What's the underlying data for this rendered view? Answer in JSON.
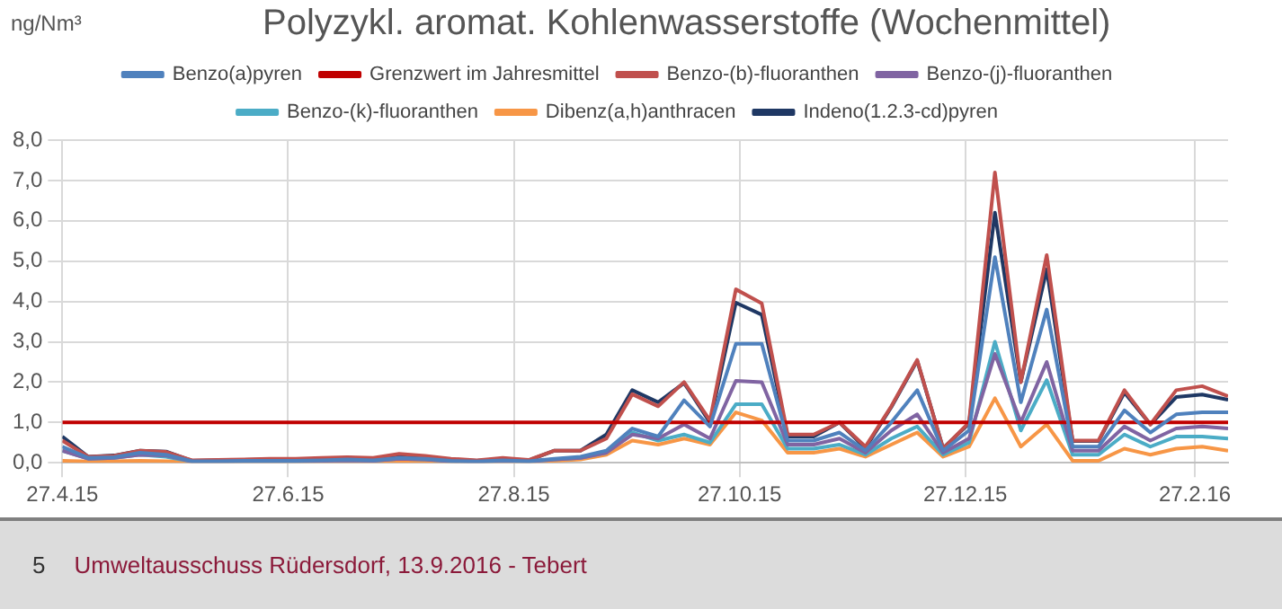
{
  "chart_data": {
    "type": "line",
    "title": "Polyzykl. aromat. Kohlenwasserstoffe (Wochenmittel)",
    "ylabel": "ng/Nm³",
    "x": [
      "2015-04-27",
      "2015-05-04",
      "2015-05-11",
      "2015-05-18",
      "2015-05-25",
      "2015-06-01",
      "2015-06-08",
      "2015-06-15",
      "2015-06-22",
      "2015-06-29",
      "2015-07-06",
      "2015-07-13",
      "2015-07-20",
      "2015-07-27",
      "2015-08-03",
      "2015-08-10",
      "2015-08-17",
      "2015-08-24",
      "2015-08-31",
      "2015-09-07",
      "2015-09-14",
      "2015-09-21",
      "2015-09-28",
      "2015-10-05",
      "2015-10-12",
      "2015-10-19",
      "2015-10-26",
      "2015-11-02",
      "2015-11-09",
      "2015-11-16",
      "2015-11-23",
      "2015-11-30",
      "2015-12-07",
      "2015-12-14",
      "2015-12-21",
      "2015-12-28",
      "2016-01-04",
      "2016-01-11",
      "2016-01-18",
      "2016-01-25",
      "2016-02-01",
      "2016-02-08",
      "2016-02-15",
      "2016-02-22",
      "2016-02-29",
      "2016-03-07"
    ],
    "series": [
      {
        "name": "Benzo(a)pyren",
        "color": "#4f81bd",
        "values": [
          0.4,
          0.12,
          0.14,
          0.25,
          0.2,
          0.04,
          0.04,
          0.05,
          0.05,
          0.05,
          0.06,
          0.08,
          0.06,
          0.12,
          0.1,
          0.05,
          0.03,
          0.06,
          0.04,
          0.1,
          0.15,
          0.3,
          0.85,
          0.65,
          1.55,
          0.9,
          2.95,
          2.95,
          0.55,
          0.55,
          0.75,
          0.3,
          1.0,
          1.8,
          0.3,
          0.8,
          5.1,
          1.5,
          3.8,
          0.4,
          0.4,
          1.3,
          0.75,
          1.2,
          1.25,
          1.25
        ]
      },
      {
        "name": "Grenzwert im Jahresmittel",
        "color": "#c00000",
        "values": [
          1,
          1,
          1,
          1,
          1,
          1,
          1,
          1,
          1,
          1,
          1,
          1,
          1,
          1,
          1,
          1,
          1,
          1,
          1,
          1,
          1,
          1,
          1,
          1,
          1,
          1,
          1,
          1,
          1,
          1,
          1,
          1,
          1,
          1,
          1,
          1,
          1,
          1,
          1,
          1,
          1,
          1,
          1,
          1,
          1,
          1
        ]
      },
      {
        "name": "Benzo-(b)-fluoranthen",
        "color": "#c0504d",
        "values": [
          0.55,
          0.15,
          0.17,
          0.3,
          0.27,
          0.06,
          0.07,
          0.08,
          0.1,
          0.1,
          0.12,
          0.14,
          0.12,
          0.22,
          0.17,
          0.1,
          0.06,
          0.12,
          0.07,
          0.3,
          0.3,
          0.6,
          1.7,
          1.4,
          2.0,
          1.05,
          4.3,
          3.95,
          0.7,
          0.7,
          1.0,
          0.4,
          1.4,
          2.55,
          0.35,
          1.0,
          7.2,
          2.0,
          5.15,
          0.55,
          0.55,
          1.8,
          0.95,
          1.8,
          1.9,
          1.65
        ]
      },
      {
        "name": "Benzo-(j)-fluoranthen",
        "color": "#8064a2",
        "values": [
          0.3,
          0.1,
          0.12,
          0.2,
          0.18,
          0.03,
          0.03,
          0.04,
          0.04,
          0.04,
          0.05,
          0.06,
          0.05,
          0.1,
          0.08,
          0.04,
          0.02,
          0.05,
          0.03,
          0.08,
          0.12,
          0.25,
          0.7,
          0.6,
          0.95,
          0.6,
          2.03,
          2.0,
          0.45,
          0.45,
          0.6,
          0.25,
          0.8,
          1.2,
          0.25,
          0.6,
          2.7,
          1.0,
          2.5,
          0.3,
          0.3,
          0.9,
          0.55,
          0.85,
          0.9,
          0.85
        ]
      },
      {
        "name": "Benzo-(k)-fluoranthen",
        "color": "#4bacc6",
        "values": [
          0.3,
          0.1,
          0.12,
          0.2,
          0.15,
          0.03,
          0.03,
          0.04,
          0.04,
          0.04,
          0.05,
          0.06,
          0.05,
          0.1,
          0.08,
          0.04,
          0.02,
          0.05,
          0.03,
          0.08,
          0.12,
          0.25,
          0.75,
          0.55,
          0.7,
          0.5,
          1.45,
          1.45,
          0.35,
          0.35,
          0.45,
          0.2,
          0.6,
          0.9,
          0.2,
          0.5,
          3.0,
          0.8,
          2.05,
          0.2,
          0.2,
          0.7,
          0.4,
          0.65,
          0.65,
          0.6
        ]
      },
      {
        "name": "Dibenz(a,h)anthracen",
        "color": "#f79646",
        "values": [
          0.05,
          0.03,
          0.04,
          0.05,
          0.04,
          0.02,
          0.02,
          0.02,
          0.02,
          0.02,
          0.02,
          0.03,
          0.02,
          0.04,
          0.03,
          0.02,
          0.01,
          0.02,
          0.02,
          0.05,
          0.08,
          0.2,
          0.55,
          0.45,
          0.6,
          0.45,
          1.25,
          1.05,
          0.25,
          0.25,
          0.35,
          0.15,
          0.45,
          0.75,
          0.15,
          0.4,
          1.6,
          0.4,
          0.95,
          0.05,
          0.05,
          0.35,
          0.2,
          0.35,
          0.4,
          0.3
        ]
      },
      {
        "name": "Indeno(1.2.3-cd)pyren",
        "color": "#1f3864",
        "values": [
          0.65,
          0.15,
          0.18,
          0.3,
          0.28,
          0.05,
          0.06,
          0.07,
          0.08,
          0.08,
          0.1,
          0.12,
          0.1,
          0.2,
          0.15,
          0.08,
          0.05,
          0.1,
          0.06,
          0.3,
          0.3,
          0.7,
          1.8,
          1.5,
          1.98,
          1.0,
          3.97,
          3.67,
          0.65,
          0.65,
          1.0,
          0.36,
          1.38,
          2.53,
          0.36,
          0.97,
          6.2,
          2.0,
          4.8,
          0.54,
          0.54,
          1.74,
          0.95,
          1.63,
          1.69,
          1.56
        ]
      }
    ],
    "xlim": [
      "2015-04-27",
      "2016-03-07"
    ],
    "xticks": [
      {
        "value": "2015-04-27",
        "label": "27.4.15"
      },
      {
        "value": "2015-06-27",
        "label": "27.6.15"
      },
      {
        "value": "2015-08-27",
        "label": "27.8.15"
      },
      {
        "value": "2015-10-27",
        "label": "27.10.15"
      },
      {
        "value": "2015-12-27",
        "label": "27.12.15"
      },
      {
        "value": "2016-02-27",
        "label": "27.2.16"
      }
    ],
    "ylim": [
      0,
      8
    ],
    "yticks": [
      {
        "value": 0,
        "label": "0,0"
      },
      {
        "value": 1,
        "label": "1,0"
      },
      {
        "value": 2,
        "label": "2,0"
      },
      {
        "value": 3,
        "label": "3,0"
      },
      {
        "value": 4,
        "label": "4,0"
      },
      {
        "value": 5,
        "label": "5,0"
      },
      {
        "value": 6,
        "label": "6,0"
      },
      {
        "value": 7,
        "label": "7,0"
      },
      {
        "value": 8,
        "label": "8,0"
      }
    ],
    "grid": true,
    "legend": "top",
    "marker": "none",
    "line_style": "solid",
    "annotations": [
      "5",
      "Umweltausschuss Rüdersdorf, 13.9.2016 - Tebert"
    ]
  }
}
